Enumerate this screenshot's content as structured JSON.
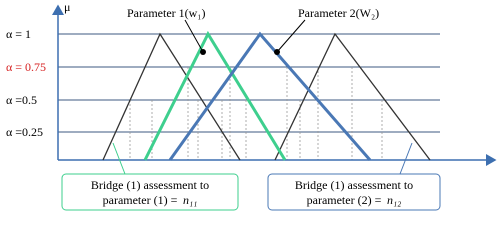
{
  "axis": {
    "y_label": "μ",
    "levels": [
      "α = 1",
      "α = 0.75",
      "α =0.5",
      "α =0.25"
    ]
  },
  "labels": {
    "parameter1": "Parameter 1(w₁)",
    "parameter2": "Parameter 2(W₂)"
  },
  "boxes": [
    {
      "line1": "Bridge (1) assessment to",
      "line2": "parameter (1) =",
      "var": "n₁₁"
    },
    {
      "line1": "Bridge (1) assessment to",
      "line2": "parameter (2) =",
      "var": "n₁₂"
    }
  ]
}
